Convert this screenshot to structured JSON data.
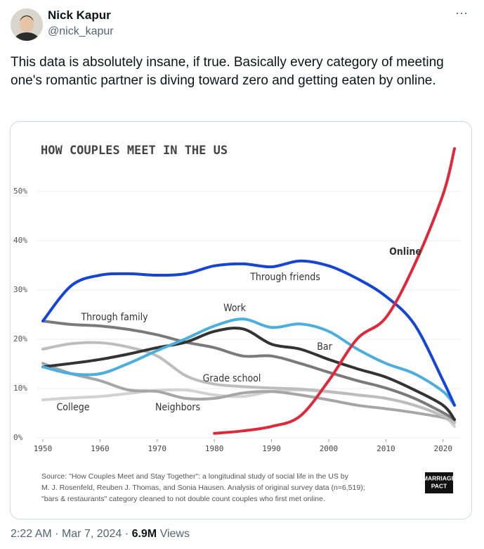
{
  "author": {
    "name": "Nick Kapur",
    "handle": "@nick_kapur"
  },
  "menu": "···",
  "text": "This data is absolutely insane, if true. Basically every category of meeting one's romantic partner is diving toward zero and getting eaten by online.",
  "footer": {
    "time": "2:22 AM",
    "separator": "·",
    "date": "Mar 7, 2024",
    "views": "6.9M",
    "views_label": "Views"
  },
  "chart_data": {
    "type": "line",
    "title": "HOW COUPLES MEET IN THE US",
    "x": [
      1950,
      1955,
      1960,
      1965,
      1970,
      1975,
      1980,
      1985,
      1990,
      1995,
      2000,
      2005,
      2010,
      2015,
      2020,
      2022
    ],
    "series": [
      {
        "name": "College",
        "color": "#d2d2d2",
        "values": [
          7.7,
          8.1,
          8.4,
          9,
          9.6,
          9.7,
          8.7,
          8.4,
          9.4,
          9.7,
          9.3,
          8.7,
          8,
          6.6,
          4.4,
          2.3
        ]
      },
      {
        "name": "Neighbors",
        "color": "#a6a6a6",
        "values": [
          15.1,
          13,
          11.6,
          9.7,
          9.4,
          8,
          8,
          9.1,
          9.4,
          8.7,
          7.7,
          6.6,
          5.9,
          5.1,
          4.1,
          3.3
        ]
      },
      {
        "name": "Grade school",
        "color": "#bdbdbd",
        "values": [
          18,
          19.1,
          19.3,
          18.4,
          16.6,
          12.6,
          10.9,
          10.4,
          10.1,
          9.9,
          9.4,
          8.7,
          8,
          6.6,
          4.4,
          3
        ]
      },
      {
        "name": "Through family",
        "color": "#7a7a7a",
        "values": [
          23.7,
          23,
          22.7,
          22,
          20.9,
          19.4,
          18.3,
          16.6,
          16.6,
          15.1,
          13.3,
          11.6,
          10.1,
          8,
          5.1,
          3.7
        ]
      },
      {
        "name": "Bar",
        "color": "#333333",
        "values": [
          14.4,
          15.1,
          15.9,
          17,
          18.3,
          19.4,
          21.6,
          22.1,
          19,
          18,
          15.9,
          14,
          12.3,
          9.7,
          6.6,
          3.7
        ]
      },
      {
        "name": "Work",
        "color": "#4aaede",
        "values": [
          14.4,
          13,
          13,
          15.1,
          17.7,
          20.1,
          22.7,
          24.1,
          22.4,
          23.1,
          21.6,
          18,
          15.1,
          13,
          9.4,
          6.6
        ]
      },
      {
        "name": "Through friends",
        "color": "#1444d8",
        "values": [
          23.7,
          30.9,
          33,
          33.3,
          33,
          33.3,
          34.9,
          35.3,
          34.7,
          35.9,
          34.9,
          32.3,
          28.7,
          23,
          11.6,
          6.6
        ]
      },
      {
        "name": "Online",
        "color": "#e0283a",
        "values": [
          null,
          null,
          null,
          null,
          null,
          null,
          0.9,
          1.4,
          2.3,
          4.4,
          11.6,
          20.1,
          24.4,
          35.1,
          49.4,
          58.7
        ]
      }
    ],
    "xlim": [
      1950,
      2022
    ],
    "ylim": [
      0,
      60
    ],
    "xticks": [
      1950,
      1960,
      1970,
      1980,
      1990,
      2000,
      2010,
      2020
    ],
    "yticks": [
      {
        "value": 0,
        "label": "0%"
      },
      {
        "value": 10,
        "label": "10%"
      },
      {
        "value": 20,
        "label": "20%"
      },
      {
        "value": 30,
        "label": "30%"
      },
      {
        "value": 40,
        "label": "40%"
      },
      {
        "value": 50,
        "label": "50%"
      }
    ],
    "grid": true,
    "source": [
      "Source: \"How Couples Meet and Stay Together\": a longitudinal study of social life in the US by",
      "M. J. Rosenfeld, Reuben J. Thomas, and Sonia Hausen. Analysis of original survey data (n=6,519);",
      "\"bars & restaurants\" category cleaned to not double count couples who first met online."
    ],
    "logo": [
      "MARRIAGE",
      "PACT"
    ]
  }
}
